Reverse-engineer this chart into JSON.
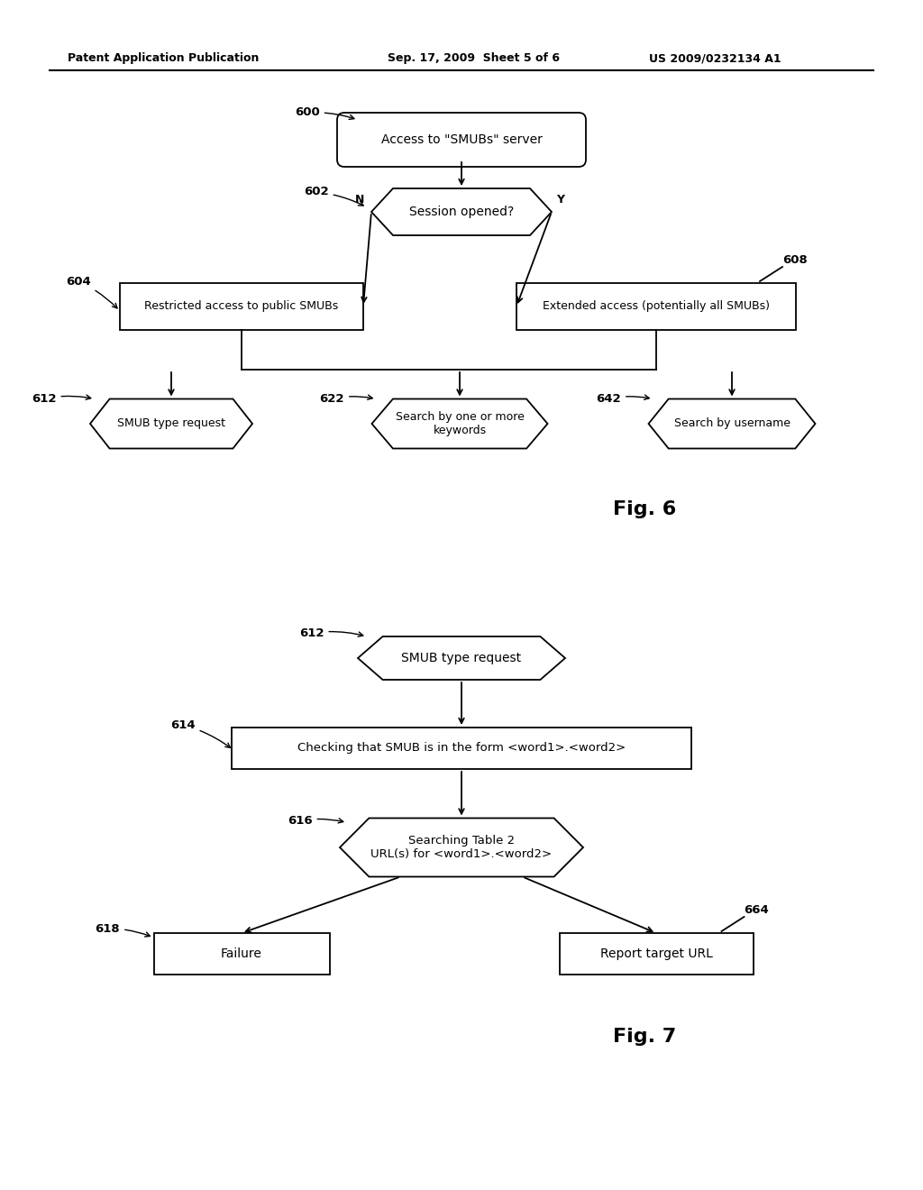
{
  "bg_color": "#ffffff",
  "header_text": "Patent Application Publication",
  "header_date": "Sep. 17, 2009  Sheet 5 of 6",
  "header_patent": "US 2009/0232134 A1",
  "fig6_label": "Fig. 6",
  "fig7_label": "Fig. 7",
  "line_color": "#000000",
  "text_color": "#000000"
}
